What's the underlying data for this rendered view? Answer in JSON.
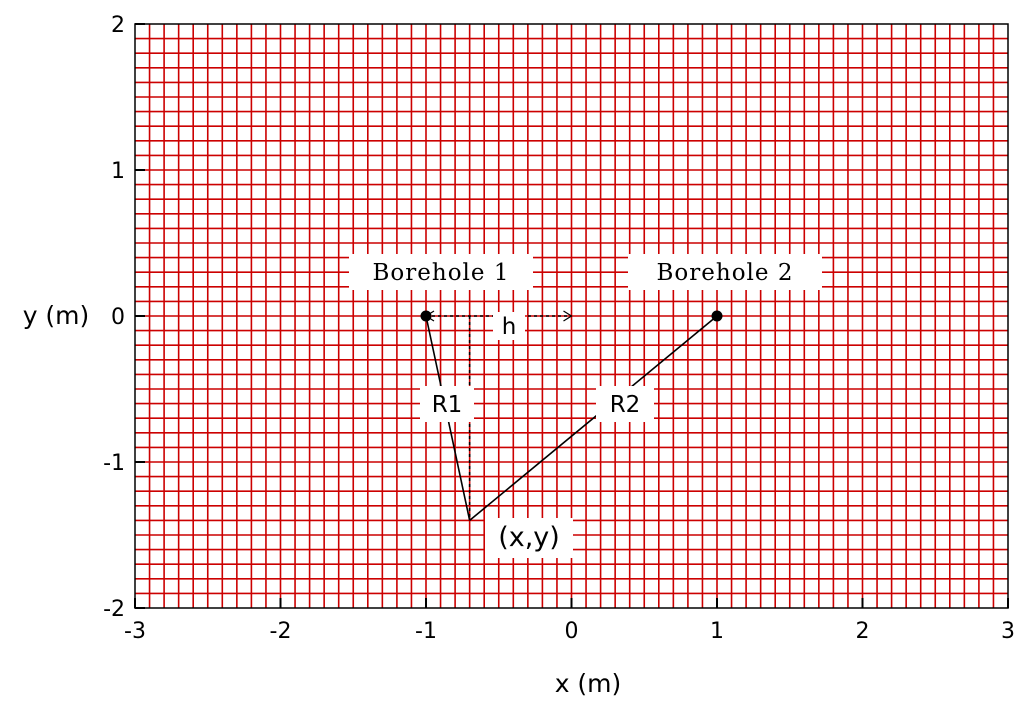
{
  "chart_data": {
    "type": "diagram",
    "xlabel": "x (m)",
    "ylabel": "y (m)",
    "xlim": [
      -3,
      3
    ],
    "ylim": [
      -2,
      2
    ],
    "x_ticks": [
      "-3",
      "-2",
      "-1",
      "0",
      "1",
      "2",
      "3"
    ],
    "y_ticks": [
      "-2",
      "-1",
      "0",
      "1",
      "2"
    ],
    "grid": true,
    "grid_spacing": 0.1,
    "grid_color": "#cc0000",
    "boreholes": [
      {
        "label": "Borehole 1",
        "x": -1,
        "y": 0
      },
      {
        "label": "Borehole 2",
        "x": 1,
        "y": 0
      }
    ],
    "point": {
      "label": "(x,y)",
      "x": -0.7,
      "y": -1.4
    },
    "distances": [
      {
        "label": "R1",
        "from": "Borehole 1"
      },
      {
        "label": "R2",
        "from": "Borehole 2"
      }
    ],
    "offset_label": "h"
  }
}
